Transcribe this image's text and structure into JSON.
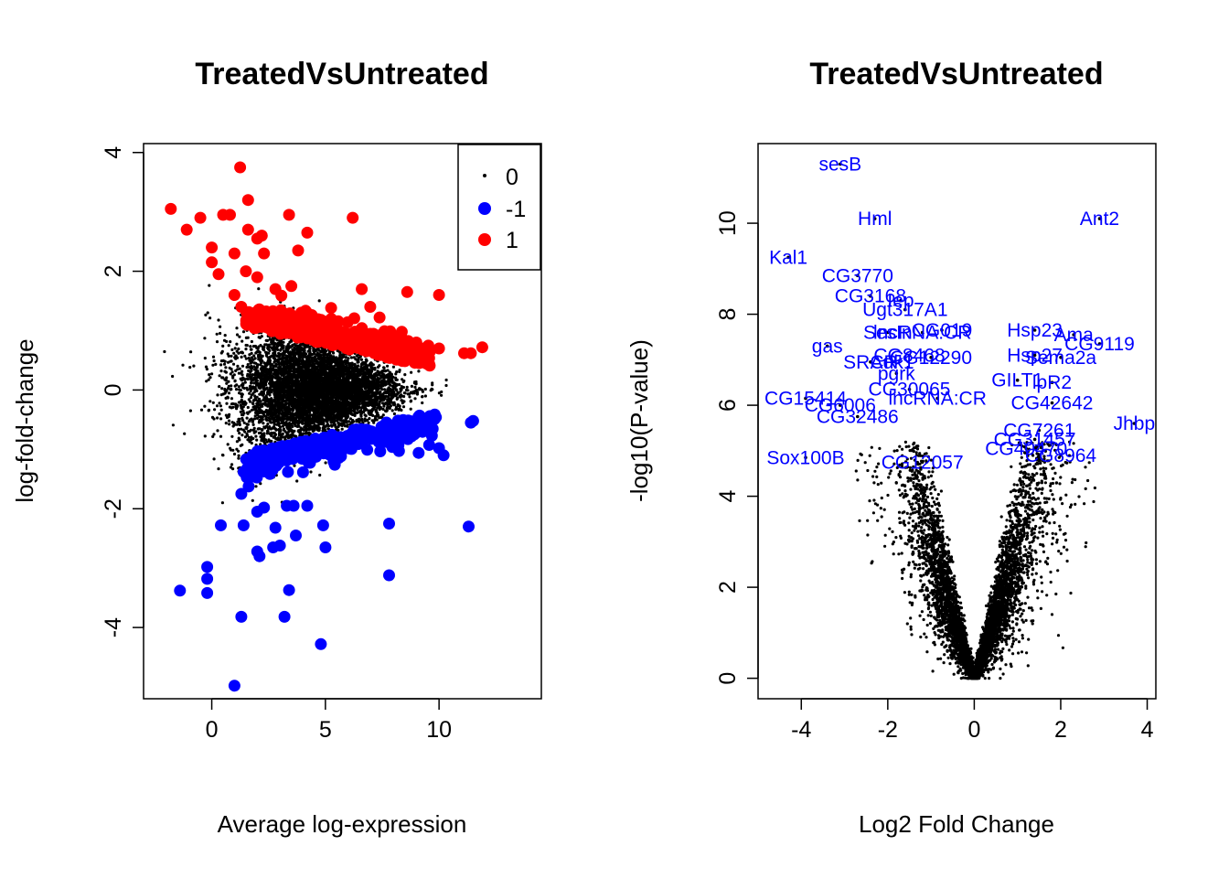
{
  "chart_data": [
    {
      "type": "scatter",
      "title": "TreatedVsUntreated",
      "xlabel": "Average log-expression",
      "ylabel": "log-fold-change",
      "xlim": [
        -3,
        14.5
      ],
      "ylim": [
        -5.2,
        4.15
      ],
      "xticks": [
        0,
        5,
        10
      ],
      "yticks": [
        -4,
        -2,
        0,
        2,
        4
      ],
      "grid": false,
      "legend": {
        "position": "top-right",
        "entries": [
          {
            "label": "0",
            "color": "#000000",
            "marker": "small-dot"
          },
          {
            "label": "-1",
            "color": "#0000ff",
            "marker": "large-dot"
          },
          {
            "label": "1",
            "color": "#ff0000",
            "marker": "large-dot"
          }
        ]
      },
      "series": [
        {
          "name": "1",
          "color": "#ff0000",
          "points": [
            [
              -1.8,
              3.05
            ],
            [
              -1.1,
              2.7
            ],
            [
              -0.5,
              2.9
            ],
            [
              0.0,
              2.4
            ],
            [
              0.0,
              2.15
            ],
            [
              0.5,
              2.95
            ],
            [
              0.8,
              2.95
            ],
            [
              1.0,
              2.3
            ],
            [
              1.25,
              3.75
            ],
            [
              1.6,
              3.2
            ],
            [
              1.6,
              2.7
            ],
            [
              2.0,
              2.55
            ],
            [
              2.2,
              2.6
            ],
            [
              2.3,
              2.3
            ],
            [
              3.4,
              2.95
            ],
            [
              3.8,
              2.35
            ],
            [
              4.2,
              2.65
            ],
            [
              6.2,
              2.9
            ],
            [
              0.3,
              1.95
            ],
            [
              1.0,
              1.6
            ],
            [
              1.3,
              1.4
            ],
            [
              1.5,
              2.0
            ],
            [
              2.0,
              1.9
            ],
            [
              2.8,
              1.7
            ],
            [
              3.5,
              1.75
            ],
            [
              6.6,
              1.7
            ],
            [
              8.6,
              1.65
            ],
            [
              10.0,
              1.6
            ],
            [
              11.1,
              0.62
            ],
            [
              11.4,
              0.62
            ],
            [
              11.9,
              0.72
            ],
            [
              9.0,
              0.8
            ],
            [
              9.6,
              0.65
            ],
            [
              10.0,
              0.7
            ]
          ],
          "cloud": {
            "x_range": [
              1.5,
              9.6
            ],
            "y_band": [
              0.4,
              1.5
            ],
            "count": 330
          }
        },
        {
          "name": "-1",
          "color": "#0000ff",
          "points": [
            [
              1.0,
              -4.98
            ],
            [
              4.8,
              -4.28
            ],
            [
              1.3,
              -3.82
            ],
            [
              3.2,
              -3.82
            ],
            [
              -1.4,
              -3.38
            ],
            [
              -0.2,
              -3.42
            ],
            [
              3.4,
              -3.37
            ],
            [
              -0.2,
              -3.18
            ],
            [
              -0.2,
              -2.98
            ],
            [
              7.8,
              -3.12
            ],
            [
              2.1,
              -2.8
            ],
            [
              2.0,
              -2.72
            ],
            [
              2.7,
              -2.65
            ],
            [
              3.0,
              -2.62
            ],
            [
              5.0,
              -2.65
            ],
            [
              0.4,
              -2.28
            ],
            [
              1.4,
              -2.28
            ],
            [
              4.9,
              -2.28
            ],
            [
              2.8,
              -2.32
            ],
            [
              3.7,
              -2.45
            ],
            [
              7.8,
              -2.25
            ],
            [
              11.3,
              -2.3
            ],
            [
              2.0,
              -2.05
            ],
            [
              2.3,
              -1.98
            ],
            [
              3.3,
              -1.95
            ],
            [
              3.6,
              -1.95
            ],
            [
              4.2,
              -1.95
            ],
            [
              1.4,
              -1.38
            ],
            [
              1.3,
              -1.75
            ],
            [
              10.2,
              -1.1
            ],
            [
              10.0,
              -0.98
            ],
            [
              11.4,
              -0.55
            ],
            [
              11.5,
              -0.52
            ]
          ],
          "cloud": {
            "x_range": [
              1.5,
              10.0
            ],
            "y_band": [
              -1.5,
              -0.35
            ],
            "count": 330
          }
        },
        {
          "name": "0",
          "color": "#000000",
          "cloud": {
            "x_range": [
              -2.2,
              13.5
            ],
            "y_band": [
              -2.7,
              2.6
            ],
            "count": 6000
          }
        }
      ]
    },
    {
      "type": "scatter",
      "title": "TreatedVsUntreated",
      "xlabel": "Log2 Fold Change",
      "ylabel": "-log10(P-value)",
      "xlim": [
        -5.0,
        4.2
      ],
      "ylim": [
        -0.45,
        11.75
      ],
      "xticks": [
        -4,
        -2,
        0,
        2,
        4
      ],
      "yticks": [
        0,
        2,
        4,
        6,
        8,
        10
      ],
      "grid": false,
      "points_color": "#000000",
      "label_color": "#0000ff",
      "cloud": {
        "shape": "volcano",
        "count": 5500
      },
      "labeled_genes": [
        {
          "label": "sesB",
          "x": -3.1,
          "y": 11.3
        },
        {
          "label": "Hml",
          "x": -2.3,
          "y": 10.1
        },
        {
          "label": "Ant2",
          "x": 2.9,
          "y": 10.1
        },
        {
          "label": "Kal1",
          "x": -4.3,
          "y": 9.25
        },
        {
          "label": "CG3770",
          "x": -2.7,
          "y": 8.85
        },
        {
          "label": "CG3168",
          "x": -2.4,
          "y": 8.4
        },
        {
          "label": "Iep",
          "x": -1.7,
          "y": 8.3
        },
        {
          "label": "Ugt317A1",
          "x": -1.6,
          "y": 8.1
        },
        {
          "label": "Hsp23",
          "x": 1.4,
          "y": 7.65
        },
        {
          "label": "Ama",
          "x": 2.3,
          "y": 7.55
        },
        {
          "label": "CG9119",
          "x": 2.9,
          "y": 7.35
        },
        {
          "label": "SesIn",
          "x": -2.0,
          "y": 7.6
        },
        {
          "label": "lncRNA:CR",
          "x": -1.2,
          "y": 7.6
        },
        {
          "label": "CG019",
          "x": -0.75,
          "y": 7.65
        },
        {
          "label": "gas",
          "x": -3.4,
          "y": 7.3
        },
        {
          "label": "Hsp27",
          "x": 1.4,
          "y": 7.1
        },
        {
          "label": "Sema2a",
          "x": 2.0,
          "y": 7.05
        },
        {
          "label": "CG8468",
          "x": -1.5,
          "y": 7.1
        },
        {
          "label": "SRCR",
          "x": -2.4,
          "y": 6.95
        },
        {
          "label": "Adk1",
          "x": -1.9,
          "y": 6.95
        },
        {
          "label": "CG12290",
          "x": -1.0,
          "y": 7.05
        },
        {
          "label": "pgrk",
          "x": -1.8,
          "y": 6.7
        },
        {
          "label": "GILT1",
          "x": 1.0,
          "y": 6.55
        },
        {
          "label": "lpR2",
          "x": 1.8,
          "y": 6.5
        },
        {
          "label": "CG30065",
          "x": -1.5,
          "y": 6.35
        },
        {
          "label": "CG15414",
          "x": -3.9,
          "y": 6.15
        },
        {
          "label": "CG6006",
          "x": -3.1,
          "y": 6.0
        },
        {
          "label": "lncRNA:CR",
          "x": -0.85,
          "y": 6.15
        },
        {
          "label": "CG42642",
          "x": 1.8,
          "y": 6.05
        },
        {
          "label": "CG32486",
          "x": -2.7,
          "y": 5.75
        },
        {
          "label": "Jhbp",
          "x": 3.7,
          "y": 5.6
        },
        {
          "label": "CG7261",
          "x": 1.5,
          "y": 5.45
        },
        {
          "label": "CG31457",
          "x": 1.4,
          "y": 5.25
        },
        {
          "label": "CG40470",
          "x": 1.2,
          "y": 5.05
        },
        {
          "label": "CG8964",
          "x": 2.0,
          "y": 4.9
        },
        {
          "label": "Sox100B",
          "x": -3.9,
          "y": 4.85
        },
        {
          "label": "CG12057",
          "x": -1.2,
          "y": 4.75
        }
      ]
    }
  ]
}
